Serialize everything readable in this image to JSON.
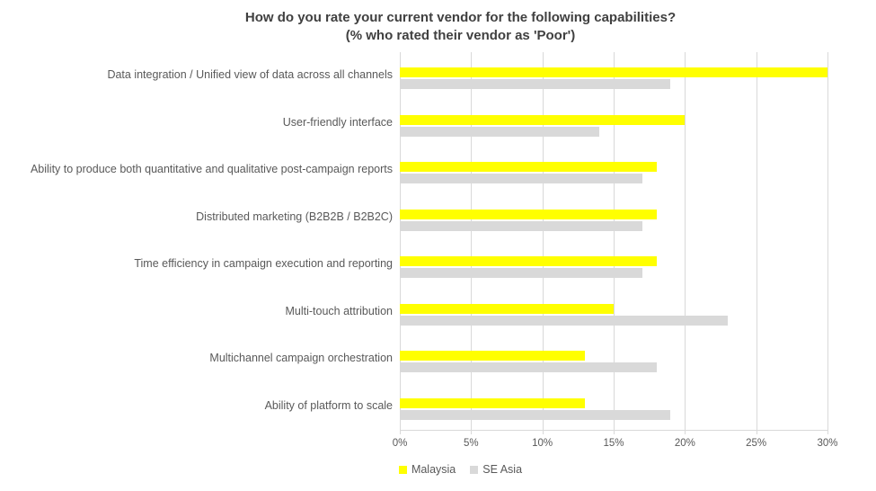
{
  "chart_data": {
    "type": "bar",
    "orientation": "horizontal",
    "title": "How do you rate your current vendor for the following capabilities?",
    "subtitle": "(% who rated their vendor as 'Poor')",
    "categories": [
      "Data integration / Unified view of data across all channels",
      "User-friendly interface",
      "Ability to produce both quantitative and qualitative post-campaign reports",
      "Distributed marketing (B2B2B / B2B2C)",
      "Time efficiency in campaign execution and reporting",
      "Multi-touch attribution",
      "Multichannel campaign orchestration",
      "Ability of platform to scale"
    ],
    "series": [
      {
        "name": "Malaysia",
        "color": "#FFFF00",
        "values": [
          30,
          20,
          18,
          18,
          18,
          15,
          13,
          13
        ]
      },
      {
        "name": "SE Asia",
        "color": "#D9D9D9",
        "values": [
          19,
          14,
          17,
          17,
          17,
          23,
          18,
          19
        ]
      }
    ],
    "xlim": [
      0,
      30
    ],
    "x_tick_values": [
      0,
      5,
      10,
      15,
      20,
      25,
      30
    ],
    "x_tick_labels": [
      "0%",
      "5%",
      "10%",
      "15%",
      "20%",
      "25%",
      "30%"
    ],
    "grid": "vertical",
    "legend_position": "bottom-center"
  },
  "colors": {
    "background": "#FFFFFF",
    "title_text": "#404040",
    "category_text": "#595959",
    "tick_text": "#595959",
    "gridline": "#D9D9D9",
    "axis_line": "#D9D9D9"
  }
}
